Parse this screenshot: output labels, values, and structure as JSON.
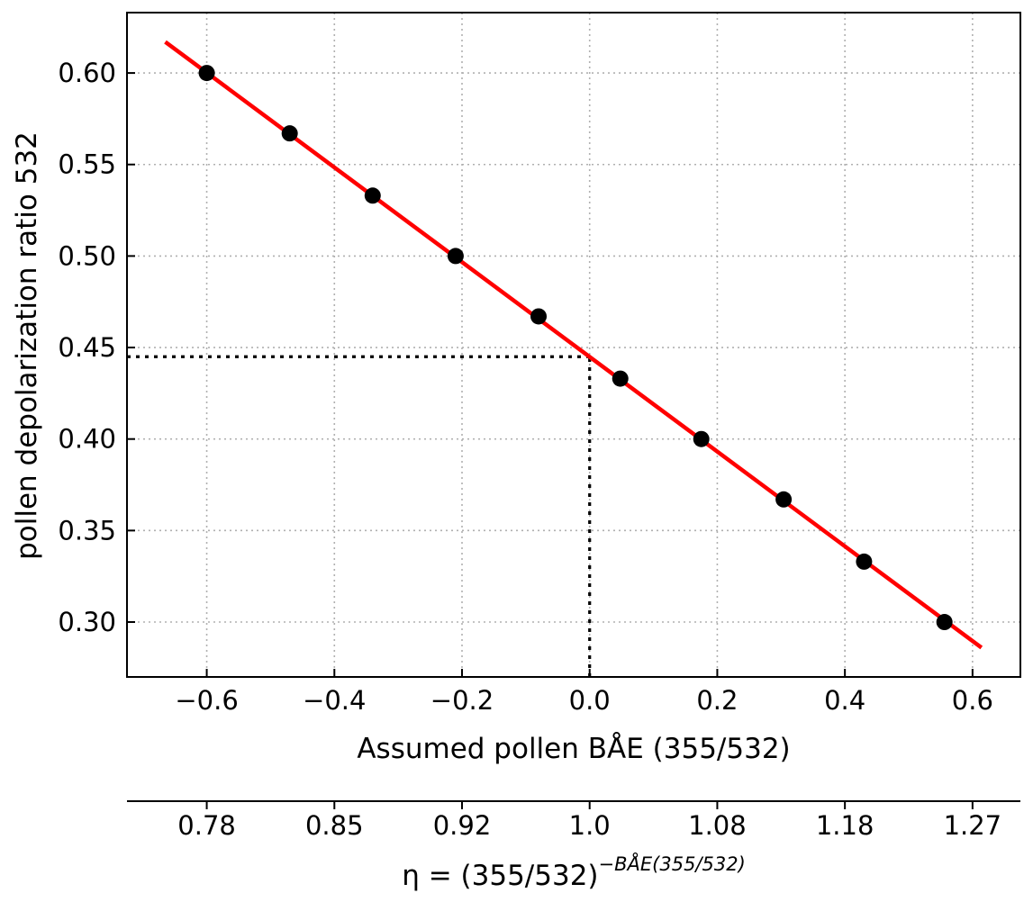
{
  "chart_data": {
    "type": "scatter",
    "xlabel": "Assumed pollen BÅE (355/532)",
    "ylabel": "pollen depolarization ratio 532",
    "xlim": [
      -0.725,
      0.675
    ],
    "ylim": [
      0.27,
      0.633
    ],
    "x_ticks": [
      -0.6,
      -0.4,
      -0.2,
      0.0,
      0.2,
      0.4,
      0.6
    ],
    "x_tick_labels": [
      "−0.6",
      "−0.4",
      "−0.2",
      "0.0",
      "0.2",
      "0.4",
      "0.6"
    ],
    "y_ticks": [
      0.3,
      0.35,
      0.4,
      0.45,
      0.5,
      0.55,
      0.6
    ],
    "y_tick_labels": [
      "0.30",
      "0.35",
      "0.40",
      "0.45",
      "0.50",
      "0.55",
      "0.60"
    ],
    "grid": true,
    "series": [
      {
        "kind": "points",
        "color": "#000000",
        "x": [
          -0.6,
          -0.47,
          -0.34,
          -0.21,
          -0.08,
          0.048,
          0.175,
          0.304,
          0.43,
          0.556
        ],
        "y": [
          0.6,
          0.567,
          0.533,
          0.5,
          0.467,
          0.433,
          0.4,
          0.367,
          0.333,
          0.3
        ]
      },
      {
        "kind": "line",
        "color": "#ff0000",
        "x": [
          -0.665,
          0.614
        ],
        "y": [
          0.617,
          0.286
        ]
      }
    ],
    "reference_lines": {
      "horizontal": {
        "y": 0.445,
        "x_start": -0.725,
        "x_end": 0.0
      },
      "vertical": {
        "x": 0.0,
        "y_start": 0.27,
        "y_end": 0.445
      }
    },
    "secondary_x_axis": {
      "label_main": "η = (355/532)",
      "label_superscript": "−BÅE(355/532)",
      "ticks": [
        -0.6,
        -0.4,
        -0.2,
        0.0,
        0.2,
        0.4,
        0.6
      ],
      "tick_labels": [
        "0.78",
        "0.85",
        "0.92",
        "1.0",
        "1.08",
        "1.18",
        "1.27"
      ]
    }
  }
}
